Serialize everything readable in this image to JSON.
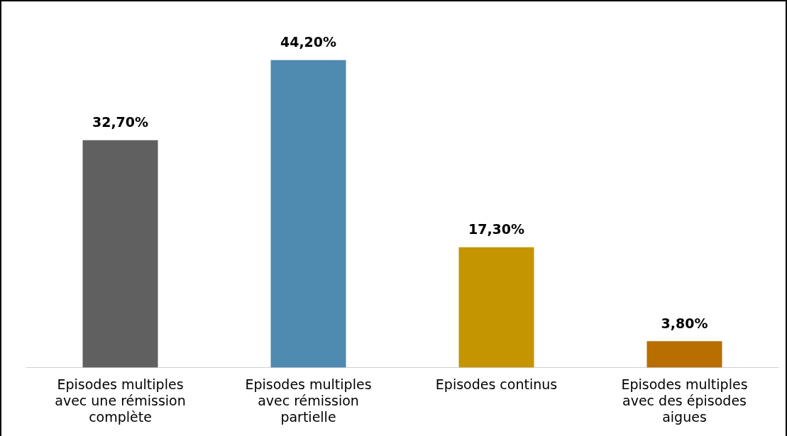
{
  "chart_data": {
    "type": "bar",
    "categories": [
      "Episodes multiples avec une rémission complète",
      "Episodes multiples avec rémission partielle",
      "Episodes continus",
      "Episodes multiples avec des épisodes aigues"
    ],
    "values": [
      32.7,
      44.2,
      17.3,
      3.8
    ],
    "colors": [
      "#606060",
      "#4f8ab0",
      "#c49500",
      "#b86e00"
    ],
    "value_labels": [
      "32,70%",
      "44,20%",
      "17,30%",
      "3,80%"
    ],
    "tick_labels": "x",
    "grid": false,
    "legend": false
  }
}
